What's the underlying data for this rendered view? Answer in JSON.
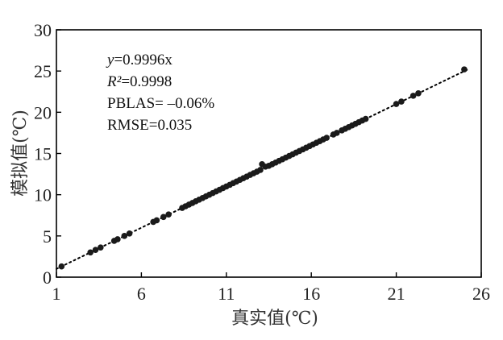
{
  "chart_data": {
    "type": "scatter",
    "xlabel": "真实值(℃)",
    "ylabel": "模拟值(℃)",
    "xlim": [
      1,
      26
    ],
    "ylim": [
      0,
      30
    ],
    "xticks": [
      1,
      6,
      11,
      16,
      21,
      26
    ],
    "yticks": [
      0,
      5,
      10,
      15,
      20,
      25,
      30
    ],
    "fit_line": {
      "slope": 0.9996,
      "intercept": 0,
      "style": "dotted"
    },
    "annotations": {
      "equation_var": "y",
      "equation_rest": "=0.9996x",
      "r2_label": "R²",
      "r2_value": "=0.9998",
      "pblas": "PBLAS= –0.06%",
      "rmse": "RMSE=0.035"
    },
    "grid": false,
    "colors": {
      "points": "#1a1a1a",
      "line": "#000000",
      "axis": "#000000"
    },
    "points": [
      [
        1.3,
        1.3
      ],
      [
        3.0,
        3.0
      ],
      [
        3.3,
        3.3
      ],
      [
        3.6,
        3.6
      ],
      [
        4.4,
        4.4
      ],
      [
        4.6,
        4.6
      ],
      [
        5.0,
        5.0
      ],
      [
        5.3,
        5.3
      ],
      [
        6.7,
        6.7
      ],
      [
        6.9,
        6.9
      ],
      [
        7.3,
        7.3
      ],
      [
        7.6,
        7.6
      ],
      [
        8.4,
        8.4
      ],
      [
        8.6,
        8.6
      ],
      [
        8.8,
        8.8
      ],
      [
        9.0,
        9.0
      ],
      [
        9.2,
        9.2
      ],
      [
        9.4,
        9.4
      ],
      [
        9.6,
        9.6
      ],
      [
        9.8,
        9.8
      ],
      [
        10.0,
        10.0
      ],
      [
        10.2,
        10.2
      ],
      [
        10.4,
        10.4
      ],
      [
        10.6,
        10.6
      ],
      [
        10.8,
        10.8
      ],
      [
        11.0,
        11.0
      ],
      [
        11.2,
        11.2
      ],
      [
        11.4,
        11.4
      ],
      [
        11.6,
        11.6
      ],
      [
        11.8,
        11.8
      ],
      [
        12.0,
        12.0
      ],
      [
        12.2,
        12.2
      ],
      [
        12.4,
        12.4
      ],
      [
        12.6,
        12.6
      ],
      [
        12.8,
        12.8
      ],
      [
        13.0,
        13.0
      ],
      [
        13.1,
        13.7
      ],
      [
        13.3,
        13.4
      ],
      [
        13.5,
        13.5
      ],
      [
        13.7,
        13.7
      ],
      [
        13.9,
        13.9
      ],
      [
        14.1,
        14.1
      ],
      [
        14.3,
        14.3
      ],
      [
        14.5,
        14.5
      ],
      [
        14.7,
        14.7
      ],
      [
        14.9,
        14.9
      ],
      [
        15.1,
        15.1
      ],
      [
        15.3,
        15.3
      ],
      [
        15.5,
        15.5
      ],
      [
        15.7,
        15.7
      ],
      [
        15.9,
        15.9
      ],
      [
        16.1,
        16.1
      ],
      [
        16.3,
        16.3
      ],
      [
        16.5,
        16.5
      ],
      [
        16.7,
        16.7
      ],
      [
        16.9,
        16.9
      ],
      [
        17.3,
        17.3
      ],
      [
        17.5,
        17.5
      ],
      [
        17.8,
        17.8
      ],
      [
        18.0,
        18.0
      ],
      [
        18.2,
        18.2
      ],
      [
        18.4,
        18.4
      ],
      [
        18.6,
        18.6
      ],
      [
        18.8,
        18.8
      ],
      [
        19.0,
        19.0
      ],
      [
        19.2,
        19.2
      ],
      [
        21.0,
        21.0
      ],
      [
        21.3,
        21.3
      ],
      [
        22.0,
        22.0
      ],
      [
        22.3,
        22.3
      ],
      [
        25.0,
        25.2
      ]
    ]
  }
}
